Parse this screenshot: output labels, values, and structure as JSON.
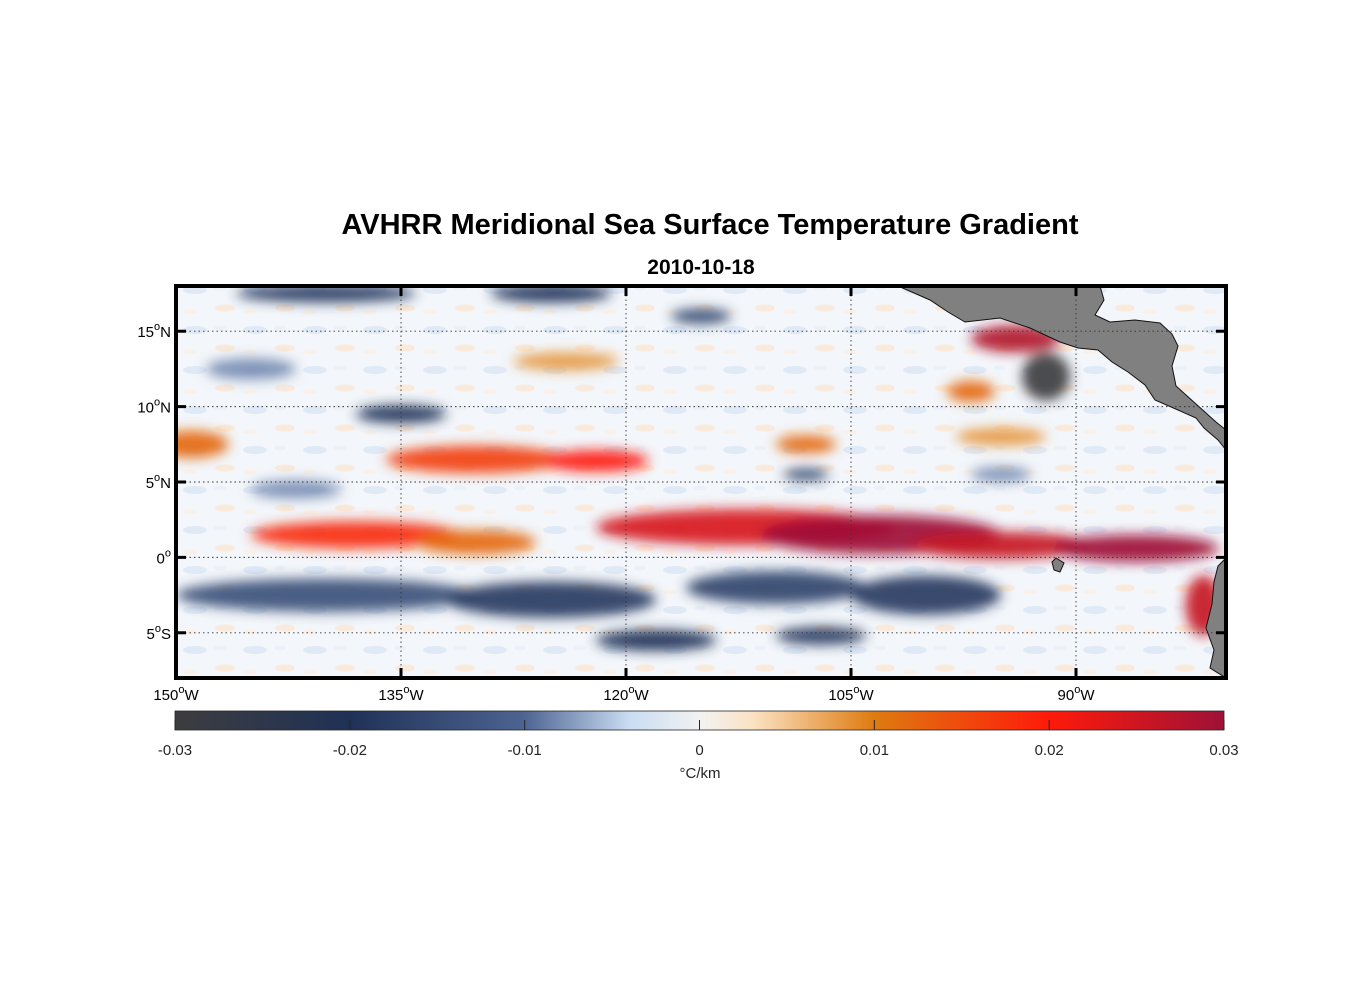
{
  "map": {
    "title": "AVHRR Meridional Sea Surface Temperature Gradient",
    "subtitle": "2010-10-18",
    "lon_range": [
      -150,
      -80
    ],
    "lat_range": [
      -8,
      18
    ],
    "lat_ticks": [
      {
        "value": 15,
        "deg": "15",
        "hemi": "N"
      },
      {
        "value": 10,
        "deg": "10",
        "hemi": "N"
      },
      {
        "value": 5,
        "deg": "5",
        "hemi": "N"
      },
      {
        "value": 0,
        "deg": "0",
        "hemi": ""
      },
      {
        "value": -5,
        "deg": "5",
        "hemi": "S"
      }
    ],
    "lon_ticks": [
      {
        "value": -150,
        "deg": "150",
        "hemi": "W"
      },
      {
        "value": -135,
        "deg": "135",
        "hemi": "W"
      },
      {
        "value": -120,
        "deg": "120",
        "hemi": "W"
      },
      {
        "value": -105,
        "deg": "105",
        "hemi": "W"
      },
      {
        "value": -90,
        "deg": "90",
        "hemi": "W"
      }
    ],
    "grid": true,
    "land_color": "#808080",
    "features": [
      {
        "lon": -138,
        "lat": 1.5,
        "rx": 7,
        "ry": 0.9,
        "v": 0.018
      },
      {
        "lon": -130,
        "lat": 6.5,
        "rx": 6,
        "ry": 0.9,
        "v": 0.016
      },
      {
        "lon": -122,
        "lat": 6.4,
        "rx": 3.5,
        "ry": 0.7,
        "v": 0.02
      },
      {
        "lon": -149,
        "lat": 7.5,
        "rx": 2.5,
        "ry": 0.9,
        "v": 0.012
      },
      {
        "lon": -130,
        "lat": 1.0,
        "rx": 4,
        "ry": 0.8,
        "v": 0.012
      },
      {
        "lon": -112,
        "lat": 2.0,
        "rx": 10,
        "ry": 1.2,
        "v": 0.024
      },
      {
        "lon": -103,
        "lat": 1.5,
        "rx": 8,
        "ry": 1.3,
        "v": 0.03
      },
      {
        "lon": -95,
        "lat": 0.8,
        "rx": 6,
        "ry": 0.9,
        "v": 0.026
      },
      {
        "lon": -86,
        "lat": 0.6,
        "rx": 5.5,
        "ry": 0.9,
        "v": 0.03
      },
      {
        "lon": -81.5,
        "lat": -3.2,
        "rx": 1.2,
        "ry": 2.0,
        "v": 0.026
      },
      {
        "lon": -94,
        "lat": 14.5,
        "rx": 3,
        "ry": 0.9,
        "v": 0.028
      },
      {
        "lon": -97,
        "lat": 11,
        "rx": 1.6,
        "ry": 0.7,
        "v": 0.012
      },
      {
        "lon": -108,
        "lat": 7.5,
        "rx": 2,
        "ry": 0.6,
        "v": 0.012
      },
      {
        "lon": -95,
        "lat": 8,
        "rx": 3,
        "ry": 0.6,
        "v": 0.008
      },
      {
        "lon": -124,
        "lat": 13,
        "rx": 3.5,
        "ry": 0.6,
        "v": 0.008
      },
      {
        "lon": -92,
        "lat": 12,
        "rx": 1.6,
        "ry": 1.6,
        "v": -0.03
      },
      {
        "lon": -135,
        "lat": 9.5,
        "rx": 3,
        "ry": 0.6,
        "v": -0.02
      },
      {
        "lon": -140,
        "lat": -2.5,
        "rx": 10,
        "ry": 1.1,
        "v": -0.014
      },
      {
        "lon": -125,
        "lat": -2.8,
        "rx": 7,
        "ry": 1.2,
        "v": -0.018
      },
      {
        "lon": -110,
        "lat": -2.0,
        "rx": 6,
        "ry": 1.1,
        "v": -0.016
      },
      {
        "lon": -100,
        "lat": -2.5,
        "rx": 5,
        "ry": 1.3,
        "v": -0.018
      },
      {
        "lon": -118,
        "lat": -5.5,
        "rx": 4,
        "ry": 0.7,
        "v": -0.02
      },
      {
        "lon": -107,
        "lat": -5.2,
        "rx": 3,
        "ry": 0.6,
        "v": -0.018
      },
      {
        "lon": -140,
        "lat": 17.5,
        "rx": 6,
        "ry": 0.6,
        "v": -0.018
      },
      {
        "lon": -125,
        "lat": 17.5,
        "rx": 4,
        "ry": 0.6,
        "v": -0.02
      },
      {
        "lon": -115,
        "lat": 16,
        "rx": 2,
        "ry": 0.5,
        "v": -0.016
      },
      {
        "lon": -108,
        "lat": 5.5,
        "rx": 1.5,
        "ry": 0.4,
        "v": -0.016
      },
      {
        "lon": -145,
        "lat": 12.5,
        "rx": 3,
        "ry": 0.7,
        "v": -0.008
      },
      {
        "lon": -95,
        "lat": 5.5,
        "rx": 2,
        "ry": 0.5,
        "v": -0.008
      },
      {
        "lon": -142,
        "lat": 4.5,
        "rx": 3,
        "ry": 0.6,
        "v": -0.008
      }
    ]
  },
  "colorbar": {
    "min": -0.03,
    "max": 0.03,
    "ticks": [
      {
        "value": -0.03,
        "label": "-0.03"
      },
      {
        "value": -0.02,
        "label": "-0.02"
      },
      {
        "value": -0.01,
        "label": "-0.01"
      },
      {
        "value": 0,
        "label": "0"
      },
      {
        "value": 0.01,
        "label": "0.01"
      },
      {
        "value": 0.02,
        "label": "0.02"
      },
      {
        "value": 0.03,
        "label": "0.03"
      }
    ],
    "unit_label": "°C/km",
    "stops": [
      {
        "v": -0.03,
        "color": "#3d3d3f"
      },
      {
        "v": -0.02,
        "color": "#1f3156"
      },
      {
        "v": -0.01,
        "color": "#4d6492"
      },
      {
        "v": -0.004,
        "color": "#c9ddf2"
      },
      {
        "v": 0,
        "color": "#f2f2f2"
      },
      {
        "v": 0.003,
        "color": "#fbe3c4"
      },
      {
        "v": 0.01,
        "color": "#de7b10"
      },
      {
        "v": 0.02,
        "color": "#ff1a0a"
      },
      {
        "v": 0.03,
        "color": "#9e1137"
      }
    ]
  }
}
